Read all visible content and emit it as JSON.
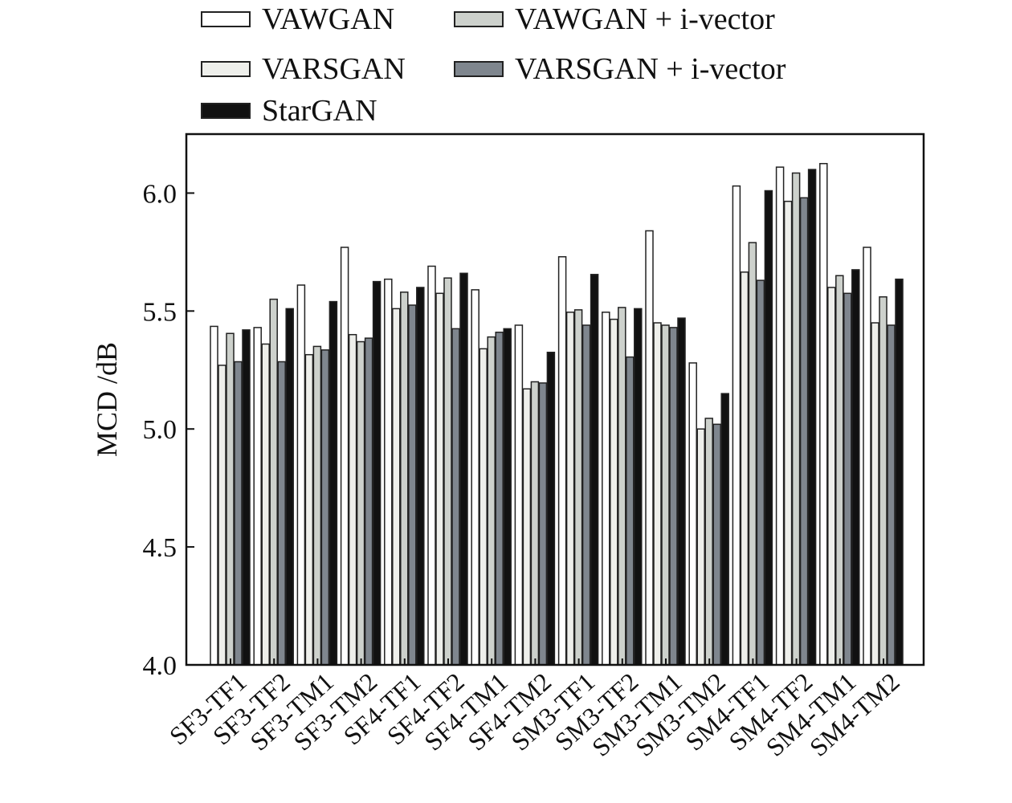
{
  "chart_data": {
    "type": "bar",
    "title": "",
    "xlabel": "",
    "ylabel": "MCD /dB",
    "ylim": [
      4.0,
      6.25
    ],
    "yticks": [
      "4.0",
      "4.5",
      "5.0",
      "5.5",
      "6.0"
    ],
    "ytick_values": [
      4.0,
      4.5,
      5.0,
      5.5,
      6.0
    ],
    "grid": false,
    "legend_position": "top",
    "categories": [
      "SF3-TF1",
      "SF3-TF2",
      "SF3-TM1",
      "SF3-TM2",
      "SF4-TF1",
      "SF4-TF2",
      "SF4-TM1",
      "SF4-TM2",
      "SM3-TF1",
      "SM3-TF2",
      "SM3-TM1",
      "SM3-TM2",
      "SM4-TF1",
      "SM4-TF2",
      "SM4-TM1",
      "SM4-TM2"
    ],
    "series": [
      {
        "name": "VAWGAN",
        "color": "#ffffff",
        "values": [
          5.435,
          5.43,
          5.61,
          5.77,
          5.635,
          5.69,
          5.59,
          5.44,
          5.73,
          5.495,
          5.84,
          5.28,
          6.03,
          6.11,
          6.125,
          5.77
        ]
      },
      {
        "name": "VARSGAN",
        "color": "#eeefeb",
        "values": [
          5.27,
          5.36,
          5.315,
          5.4,
          5.51,
          5.575,
          5.34,
          5.17,
          5.495,
          5.465,
          5.45,
          5.0,
          5.665,
          5.965,
          5.6,
          5.45
        ]
      },
      {
        "name": "VAWGAN + i-vector",
        "color": "#cdd1cc",
        "values": [
          5.405,
          5.55,
          5.35,
          5.37,
          5.58,
          5.64,
          5.39,
          5.2,
          5.505,
          5.515,
          5.44,
          5.045,
          5.79,
          6.085,
          5.65,
          5.56
        ]
      },
      {
        "name": "VARSGAN + i-vector",
        "color": "#7f868e",
        "values": [
          5.285,
          5.285,
          5.335,
          5.385,
          5.525,
          5.425,
          5.41,
          5.195,
          5.44,
          5.305,
          5.43,
          5.02,
          5.63,
          5.98,
          5.575,
          5.44
        ]
      },
      {
        "name": "StarGAN",
        "color": "#111111",
        "values": [
          5.42,
          5.51,
          5.54,
          5.625,
          5.6,
          5.66,
          5.425,
          5.325,
          5.655,
          5.51,
          5.47,
          5.15,
          6.01,
          6.1,
          5.675,
          5.635
        ]
      }
    ]
  }
}
